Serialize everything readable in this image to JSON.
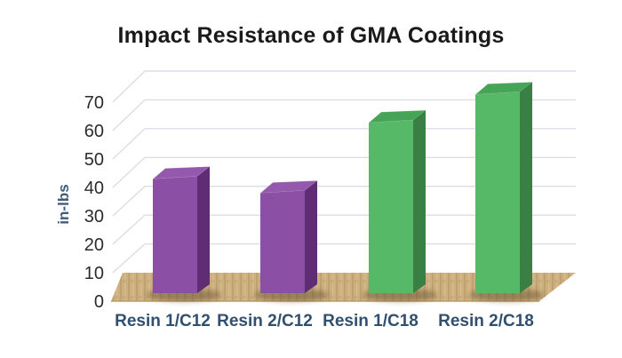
{
  "title": "Impact Resistance of GMA Coatings",
  "chart_data": {
    "type": "bar",
    "style": "3d-column",
    "title": "Impact Resistance of GMA Coatings",
    "categories": [
      "Resin 1/C12",
      "Resin 2/C12",
      "Resin 1/C18",
      "Resin 2/C18"
    ],
    "values": [
      41,
      36,
      61,
      71
    ],
    "bar_colors": [
      "purple",
      "purple",
      "green",
      "green"
    ],
    "xlabel": "",
    "ylabel": "in-lbs",
    "ylim": [
      0,
      70
    ],
    "y_ticks": [
      0,
      10,
      20,
      30,
      40,
      50,
      60,
      70
    ],
    "grid": true,
    "legend": false,
    "colors": {
      "purple_front": "#8B4FA5",
      "purple_side": "#602C74",
      "purple_top": "#9459AD",
      "green_front": "#55B967",
      "green_side": "#3A8045",
      "green_top": "#46A457",
      "floor": "#CDB07E",
      "floor_shade": "#B89A6A",
      "gridline": "#DCDDE8",
      "title_color": "#1A1A1A",
      "tick_color": "#2B2B2B",
      "xlabel_color": "#31506F",
      "ylabel_color": "#3F5D7A",
      "background": "#FFFFFF"
    }
  }
}
